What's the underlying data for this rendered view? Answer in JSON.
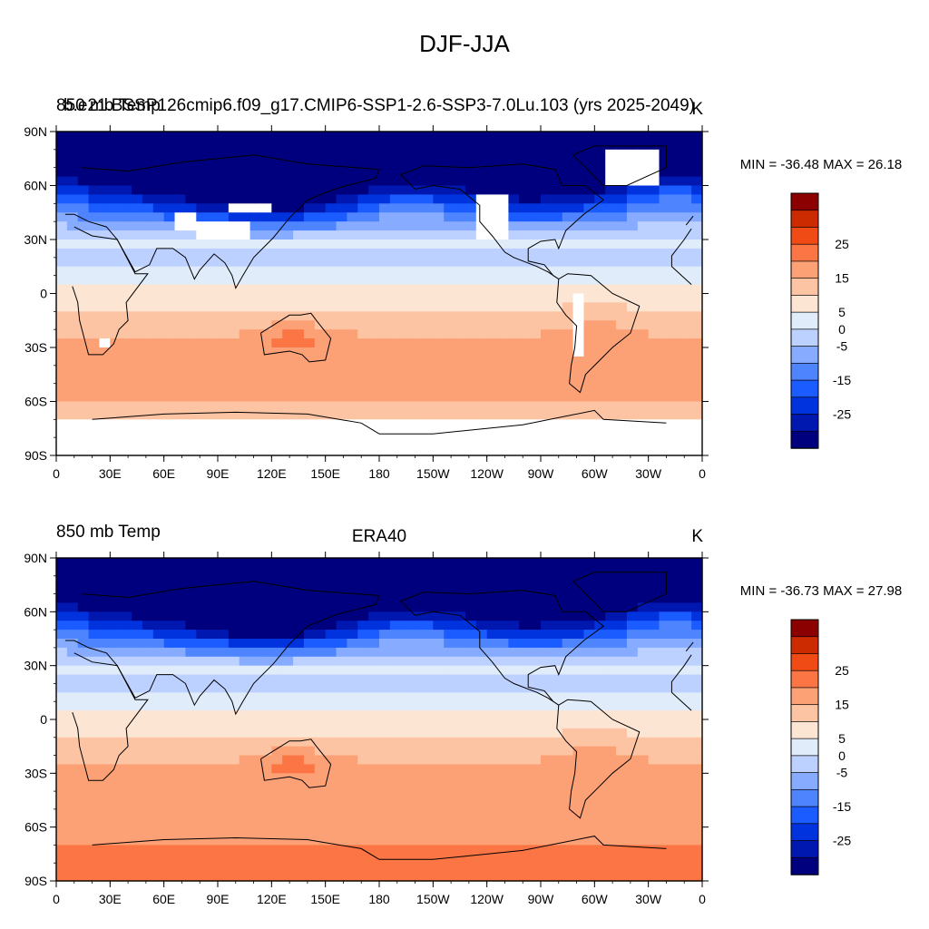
{
  "figure_title": "DJF-JJA",
  "panels": [
    {
      "left_title": "850 mb Temp",
      "center_title": "b.e21.BSSP126cmip6.f09_g17.CMIP6-SSP1-2.6-SSP3-7.0Lu.103 (yrs 2025-2049)",
      "units": "K",
      "stats_text": "MIN = -36.48 MAX =  26.18",
      "min": -36.48,
      "max": 26.18,
      "missing_regions": [
        "Tibetan Plateau",
        "Himalayas / Central Asia",
        "Greenland",
        "Rocky Mountains",
        "Andes",
        "Antarctica",
        "Southern Africa highlands"
      ]
    },
    {
      "left_title": "850 mb Temp",
      "center_title": "ERA40",
      "units": "K",
      "stats_text": "MIN = -36.73 MAX =  27.98",
      "min": -36.73,
      "max": 27.98
    }
  ],
  "axes": {
    "lat_ticks": [
      "90N",
      "60N",
      "30N",
      "0",
      "30S",
      "60S",
      "90S"
    ],
    "lon_ticks": [
      "0",
      "30E",
      "60E",
      "90E",
      "120E",
      "150E",
      "180",
      "150W",
      "120W",
      "90W",
      "60W",
      "30W",
      "0"
    ]
  },
  "colorbar": {
    "levels": [
      -30,
      -25,
      -20,
      -15,
      -10,
      -5,
      0,
      5,
      10,
      15,
      20,
      25,
      30
    ],
    "labels": [
      "25",
      "15",
      "5",
      "0",
      "-5",
      "-15",
      "-25"
    ],
    "colors": [
      "#00007f",
      "#0018b0",
      "#0033dd",
      "#1a5cff",
      "#4f84ff",
      "#86abff",
      "#bcd1ff",
      "#e0ecfa",
      "#fde5d4",
      "#fcc4a2",
      "#fca076",
      "#fb7545",
      "#f04b15",
      "#cc2a00",
      "#8b0000"
    ]
  },
  "chart_data": {
    "type": "heatmap",
    "title": "DJF-JJA",
    "variable": "850 mb Temp",
    "units": "K",
    "x_axis": "longitude",
    "y_axis": "latitude",
    "xlim": [
      0,
      360
    ],
    "ylim": [
      -90,
      90
    ],
    "contour_levels": [
      -30,
      -25,
      -20,
      -15,
      -10,
      -5,
      0,
      5,
      10,
      15,
      20,
      25,
      30
    ],
    "series": [
      {
        "name": "b.e21.BSSP126cmip6.f09_g17.CMIP6-SSP1-2.6-SSP3-7.0Lu.103 (yrs 2025-2049)",
        "min": -36.48,
        "max": 26.18
      },
      {
        "name": "ERA40",
        "min": -36.73,
        "max": 27.98
      }
    ]
  }
}
